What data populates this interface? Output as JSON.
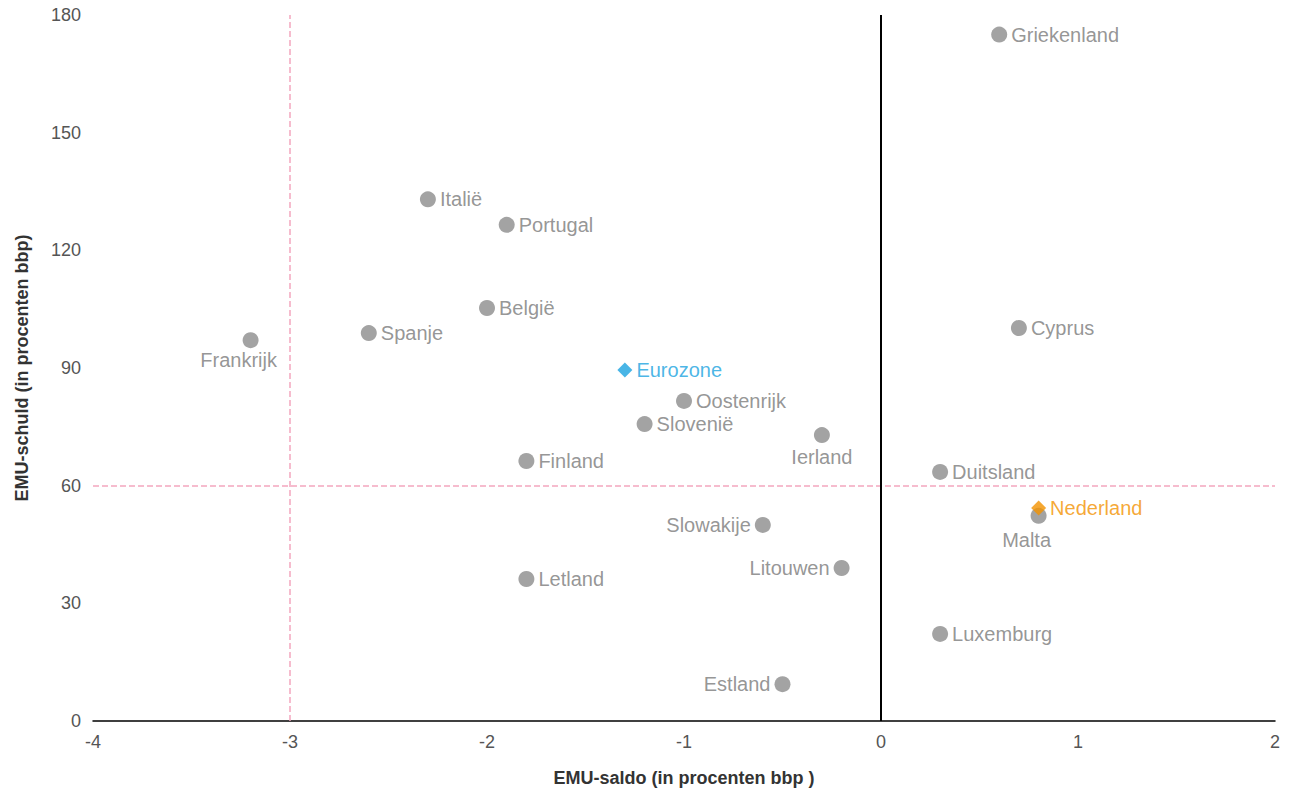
{
  "chart_data": {
    "type": "scatter",
    "x_label": "EMU-saldo (in procenten bbp )",
    "y_label": "EMU-schuld (in procenten bbp)",
    "xlim": [
      -4,
      2
    ],
    "xticks": [
      -4,
      -3,
      -2,
      -1,
      0,
      1,
      2
    ],
    "ylim": [
      0,
      180
    ],
    "yticks": [
      0,
      30,
      60,
      90,
      120,
      150,
      180
    ],
    "grid": false,
    "series": [
      {
        "color": "#8c8c8c",
        "marker": "circle",
        "points": [
          {
            "label": "Griekenland",
            "x": 0.6,
            "y": 175
          },
          {
            "label": "Italië",
            "x": -2.3,
            "y": 133
          },
          {
            "label": "Portugal",
            "x": -1.9,
            "y": 126.5
          },
          {
            "label": "België",
            "x": -2.0,
            "y": 105.3
          },
          {
            "label": "Spanje",
            "x": -2.6,
            "y": 98.9
          },
          {
            "label": "Frankrijk",
            "x": -3.2,
            "y": 97.1
          },
          {
            "label": "Oostenrijk",
            "x": -1.0,
            "y": 81.6
          },
          {
            "label": "Slovenië",
            "x": -1.2,
            "y": 75.7
          },
          {
            "label": "Ierland",
            "x": -0.3,
            "y": 72.9
          },
          {
            "label": "Finland",
            "x": -1.8,
            "y": 66.3
          },
          {
            "label": "Duitsland",
            "x": 0.3,
            "y": 63.5
          },
          {
            "label": "Cyprus",
            "x": 0.7,
            "y": 100.2
          },
          {
            "label": "Malta",
            "x": 0.8,
            "y": 52.3
          },
          {
            "label": "Slowakije",
            "x": -0.6,
            "y": 50
          },
          {
            "label": "Litouwen",
            "x": -0.2,
            "y": 39
          },
          {
            "label": "Letland",
            "x": -1.8,
            "y": 36.2
          },
          {
            "label": "Luxemburg",
            "x": 0.3,
            "y": 22.2
          },
          {
            "label": "Estland",
            "x": -0.5,
            "y": 9.4
          }
        ]
      },
      {
        "color": "#1aa3e0",
        "marker": "diamond",
        "points": [
          {
            "label": "Eurozone",
            "x": -1.3,
            "y": 89.5
          }
        ]
      },
      {
        "color": "#f39200",
        "marker": "diamond",
        "points": [
          {
            "label": "Nederland",
            "x": 0.8,
            "y": 54.3
          }
        ]
      }
    ],
    "reference_lines": [
      {
        "axis": "x",
        "value": -3,
        "color": "#f4a6bf",
        "line_style": "dashed"
      },
      {
        "axis": "y",
        "value": 60,
        "color": "#f4a6bf",
        "line_style": "dashed"
      },
      {
        "axis": "x",
        "value": 0,
        "color": "#000000",
        "line_style": "solid"
      }
    ]
  }
}
